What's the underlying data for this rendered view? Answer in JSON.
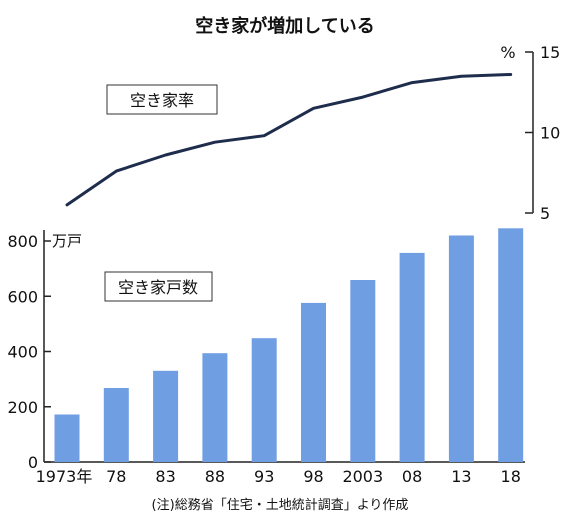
{
  "chart_data": {
    "title": "空き家が増加している",
    "note": "(注)総務省「住宅・土地統計調査」より作成",
    "categories": [
      "1973年",
      "78",
      "83",
      "88",
      "93",
      "98",
      "2003",
      "08",
      "13",
      "18"
    ],
    "charts": [
      {
        "type": "line",
        "label": "空き家率",
        "unit": "%",
        "y_ticks": [
          "5",
          "10",
          "15"
        ],
        "ylim": [
          5,
          15
        ],
        "axis_side": "right",
        "color": "#1f2d4d",
        "values": [
          5.5,
          7.6,
          8.6,
          9.4,
          9.8,
          11.5,
          12.2,
          13.1,
          13.5,
          13.6
        ]
      },
      {
        "type": "bar",
        "label": "空き家戸数",
        "unit": "万戸",
        "y_ticks": [
          "0",
          "200",
          "400",
          "600",
          "800"
        ],
        "ylim": [
          0,
          800
        ],
        "axis_side": "left",
        "color": "#6f9ee3",
        "values": [
          172,
          268,
          330,
          394,
          448,
          576,
          659,
          757,
          820,
          846
        ]
      }
    ]
  }
}
